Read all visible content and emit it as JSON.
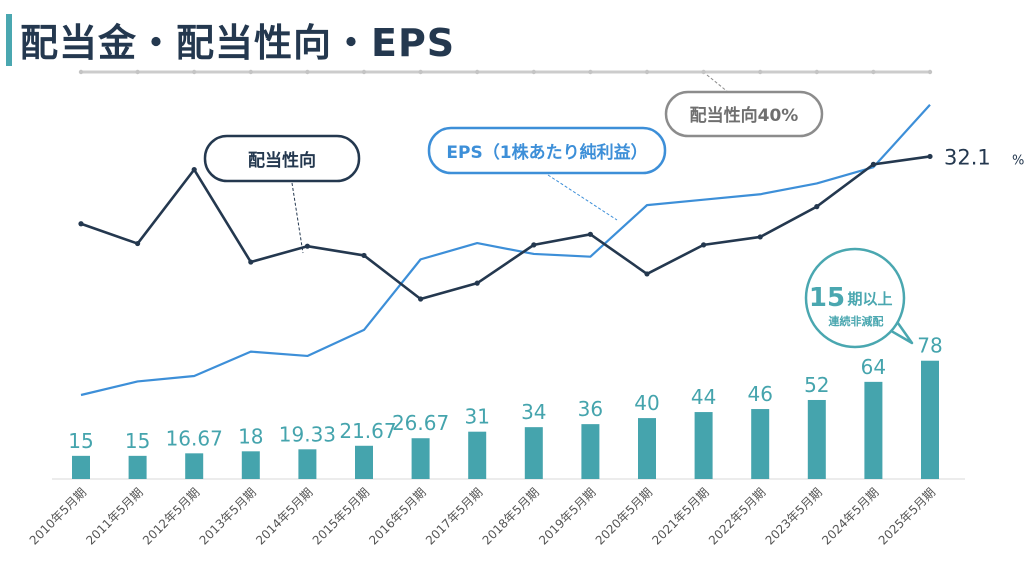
{
  "title": "配当金・配当性向・EPS",
  "chart_data": {
    "type": "bar+line",
    "categories": [
      "2010年5月期",
      "2011年5月期",
      "2012年5月期",
      "2013年5月期",
      "2014年5月期",
      "2015年5月期",
      "2016年5月期",
      "2017年5月期",
      "2018年5月期",
      "2019年5月期",
      "2020年5月期",
      "2021年5月期",
      "2022年5月期",
      "2023年5月期",
      "2024年5月期",
      "2025年5月期"
    ],
    "dividend": {
      "values": [
        15,
        15,
        16.67,
        18,
        19.33,
        21.67,
        26.67,
        31,
        34,
        36,
        40,
        44,
        46,
        52,
        64,
        78
      ],
      "labels": [
        "15",
        "15",
        "16.67",
        "18",
        "19.33",
        "21.67",
        "26.67",
        "31",
        "34",
        "36",
        "40",
        "44",
        "46",
        "52",
        "64",
        "78"
      ],
      "color": "#45a4ad"
    },
    "payout_ratio": {
      "name": "配当性向",
      "values": [
        27,
        25.5,
        31.1,
        24.1,
        25.3,
        24.6,
        21.3,
        22.5,
        25.4,
        26.2,
        23.2,
        25.4,
        26,
        28.3,
        31.5,
        32.1
      ],
      "end_label": "32.1",
      "end_unit": "%",
      "color": "#24384f"
    },
    "eps": {
      "name": "EPS（1株あたり純利益）",
      "values": [
        100,
        125,
        135,
        180,
        172,
        220,
        350,
        380,
        360,
        355,
        450,
        460,
        470,
        490,
        520,
        635
      ],
      "color": "#3d8fd8"
    },
    "reference_line": {
      "label": "配当性向40%",
      "value": 40,
      "color": "#cccccc"
    },
    "badge": {
      "big": "15",
      "main": "期以上",
      "sub": "連続非減配",
      "color": "#4aa7b0"
    },
    "dividend_axis": [
      0,
      100
    ],
    "ratio_axis": [
      15,
      40
    ],
    "eps_axis": [
      -200,
      700
    ]
  }
}
